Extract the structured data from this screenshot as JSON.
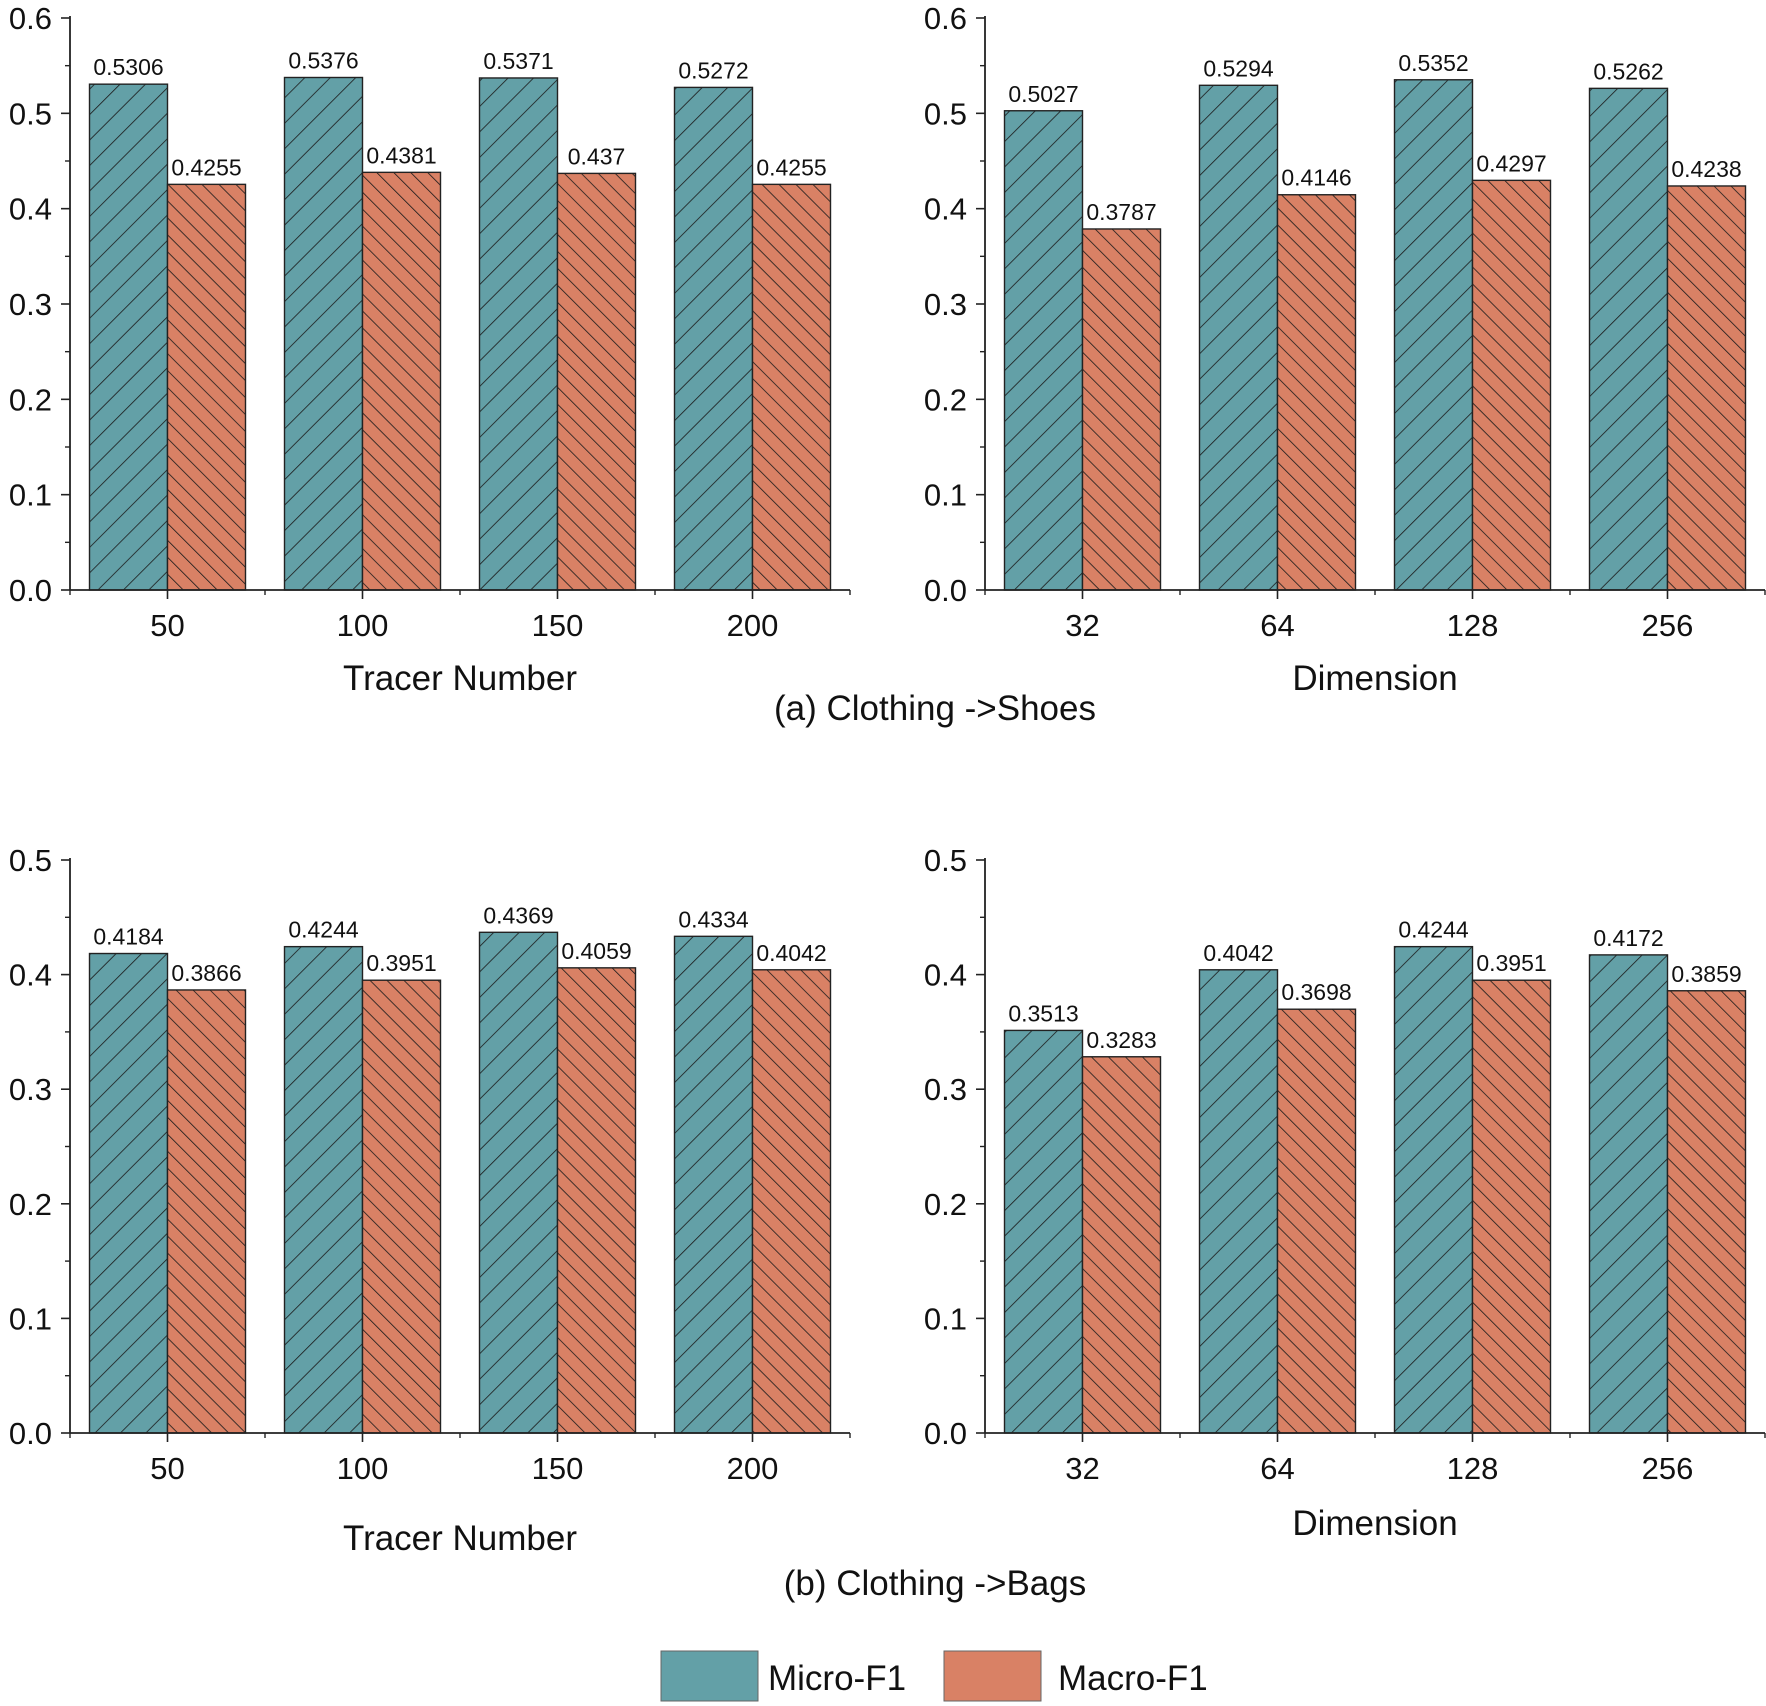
{
  "colors": {
    "micro": "#63a0a7",
    "macro": "#d98165",
    "axis": "#222222",
    "hatch": "#1a1a1a"
  },
  "captions": {
    "a": "(a) Clothing ->Shoes",
    "b": "(b) Clothing ->Bags"
  },
  "legend": {
    "items": [
      {
        "label": "Micro-F1",
        "color": "#63a0a7"
      },
      {
        "label": "Macro-F1",
        "color": "#d98165"
      }
    ]
  },
  "chart_data": [
    {
      "id": "a-left",
      "type": "bar",
      "xlabel": "Tracer Number",
      "ylabel": "",
      "categories": [
        "50",
        "100",
        "150",
        "200"
      ],
      "ylim": [
        0,
        0.6
      ],
      "yticks": [
        "0.0",
        "0.1",
        "0.2",
        "0.3",
        "0.4",
        "0.5",
        "0.6"
      ],
      "series": [
        {
          "name": "Micro-F1",
          "values": [
            0.5306,
            0.5376,
            0.5371,
            0.5272
          ],
          "labels": [
            "0.5306",
            "0.5376",
            "0.5371",
            "0.5272"
          ]
        },
        {
          "name": "Macro-F1",
          "values": [
            0.4255,
            0.4381,
            0.437,
            0.4255
          ],
          "labels": [
            "0.4255",
            "0.4381",
            "0.437",
            "0.4255"
          ]
        }
      ]
    },
    {
      "id": "a-right",
      "type": "bar",
      "xlabel": "Dimension",
      "ylabel": "",
      "categories": [
        "32",
        "64",
        "128",
        "256"
      ],
      "ylim": [
        0,
        0.6
      ],
      "yticks": [
        "0.0",
        "0.1",
        "0.2",
        "0.3",
        "0.4",
        "0.5",
        "0.6"
      ],
      "series": [
        {
          "name": "Micro-F1",
          "values": [
            0.5027,
            0.5294,
            0.5352,
            0.5262
          ],
          "labels": [
            "0.5027",
            "0.5294",
            "0.5352",
            "0.5262"
          ]
        },
        {
          "name": "Macro-F1",
          "values": [
            0.3787,
            0.4146,
            0.4297,
            0.4238
          ],
          "labels": [
            "0.3787",
            "0.4146",
            "0.4297",
            "0.4238"
          ]
        }
      ]
    },
    {
      "id": "b-left",
      "type": "bar",
      "xlabel": "Tracer Number",
      "ylabel": "",
      "categories": [
        "50",
        "100",
        "150",
        "200"
      ],
      "ylim": [
        0,
        0.5
      ],
      "yticks": [
        "0.0",
        "0.1",
        "0.2",
        "0.3",
        "0.4",
        "0.5"
      ],
      "series": [
        {
          "name": "Micro-F1",
          "values": [
            0.4184,
            0.4244,
            0.4369,
            0.4334
          ],
          "labels": [
            "0.4184",
            "0.4244",
            "0.4369",
            "0.4334"
          ]
        },
        {
          "name": "Macro-F1",
          "values": [
            0.3866,
            0.3951,
            0.4059,
            0.4042
          ],
          "labels": [
            "0.3866",
            "0.3951",
            "0.4059",
            "0.4042"
          ]
        }
      ]
    },
    {
      "id": "b-right",
      "type": "bar",
      "xlabel": "Dimension",
      "ylabel": "",
      "categories": [
        "32",
        "64",
        "128",
        "256"
      ],
      "ylim": [
        0,
        0.5
      ],
      "yticks": [
        "0.0",
        "0.1",
        "0.2",
        "0.3",
        "0.4",
        "0.5"
      ],
      "series": [
        {
          "name": "Micro-F1",
          "values": [
            0.3513,
            0.4042,
            0.4244,
            0.4172
          ],
          "labels": [
            "0.3513",
            "0.4042",
            "0.4244",
            "0.4172"
          ]
        },
        {
          "name": "Macro-F1",
          "values": [
            0.3283,
            0.3698,
            0.3951,
            0.3859
          ],
          "labels": [
            "0.3283",
            "0.3698",
            "0.3951",
            "0.3859"
          ]
        }
      ]
    }
  ]
}
